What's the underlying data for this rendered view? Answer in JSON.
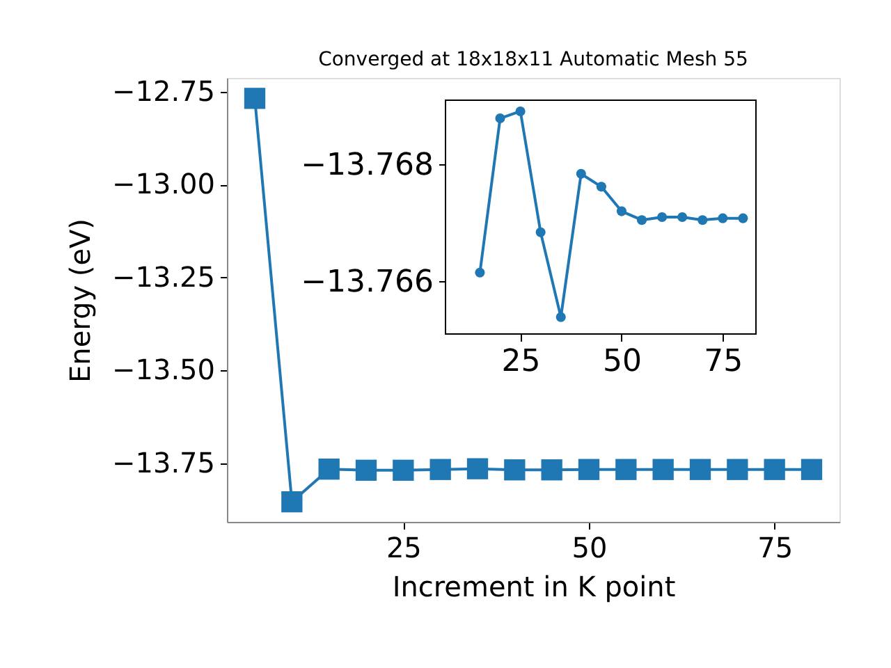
{
  "chart_data": [
    {
      "type": "line",
      "title": "Converged at 18x18x11 Automatic Mesh 55",
      "xlabel": "Increment in K point",
      "ylabel": "Energy (eV)",
      "marker": "square",
      "x": [
        5,
        10,
        15,
        20,
        25,
        30,
        35,
        40,
        45,
        50,
        55,
        60,
        65,
        70,
        75,
        80
      ],
      "series": [
        {
          "color": "#1f77b4",
          "values": [
            -12.768,
            -13.854,
            -13.766,
            -13.769,
            -13.769,
            -13.767,
            -13.765,
            -13.768,
            -13.768,
            -13.767,
            -13.767,
            -13.767,
            -13.767,
            -13.767,
            -13.767,
            -13.767
          ]
        }
      ],
      "xlim": [
        1.25,
        83.75
      ],
      "ylim": [
        -13.908,
        -12.713
      ],
      "xticks": [
        25,
        50,
        75
      ],
      "yticks": [
        -12.75,
        {
          "value": -13.0,
          "label": "−13.00"
        },
        -13.25,
        {
          "value": -13.5,
          "label": "−13.50"
        },
        -13.75
      ]
    },
    {
      "type": "line",
      "marker": "circle",
      "x": [
        15,
        20,
        25,
        30,
        35,
        40,
        45,
        50,
        55,
        60,
        65,
        70,
        75,
        80
      ],
      "series": [
        {
          "color": "#1f77b4",
          "values": [
            -13.76615,
            -13.76879,
            -13.76891,
            -13.76684,
            -13.76539,
            -13.76784,
            -13.76762,
            -13.7672,
            -13.76705,
            -13.7671,
            -13.7671,
            -13.76705,
            -13.76708,
            -13.76708
          ]
        }
      ],
      "xlim": [
        6.5,
        83.2
      ],
      "ylim": [
        -13.7651,
        -13.7691
      ],
      "xticks": [
        25,
        50,
        75
      ],
      "yticks": [
        -13.768,
        -13.766
      ]
    }
  ]
}
